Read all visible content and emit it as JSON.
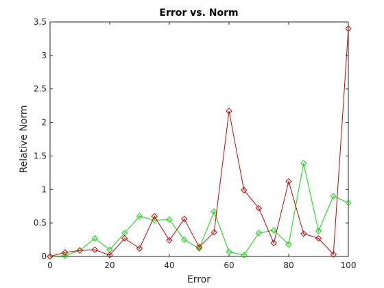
{
  "chart_data": {
    "type": "line",
    "title": "Error vs. Norm",
    "xlabel": "Error",
    "ylabel": "Relative Norm",
    "xlim": [
      0,
      100
    ],
    "ylim": [
      0,
      3.5
    ],
    "xticks": [
      "0",
      "20",
      "40",
      "60",
      "80",
      "100"
    ],
    "yticks": [
      "0",
      "0.5",
      "1",
      "1.5",
      "2",
      "2.5",
      "3",
      "3.5"
    ],
    "grid": false,
    "x": [
      0,
      5,
      10,
      15,
      20,
      25,
      30,
      35,
      40,
      45,
      50,
      55,
      60,
      65,
      70,
      75,
      80,
      85,
      90,
      95,
      100
    ],
    "series": [
      {
        "color": "#00dd00",
        "marker": "diamond",
        "values": [
          0.0,
          0.01,
          0.09,
          0.27,
          0.1,
          0.35,
          0.6,
          0.54,
          0.55,
          0.25,
          0.12,
          0.67,
          0.07,
          0.02,
          0.35,
          0.39,
          0.18,
          1.39,
          0.38,
          0.9,
          0.8
        ]
      },
      {
        "color": "#cc0000",
        "marker": "diamond",
        "values": [
          0.0,
          0.06,
          0.09,
          0.1,
          0.02,
          0.27,
          0.12,
          0.6,
          0.24,
          0.56,
          0.14,
          0.36,
          2.17,
          0.99,
          0.72,
          0.2,
          1.12,
          0.34,
          0.27,
          0.03,
          3.4
        ]
      }
    ]
  }
}
